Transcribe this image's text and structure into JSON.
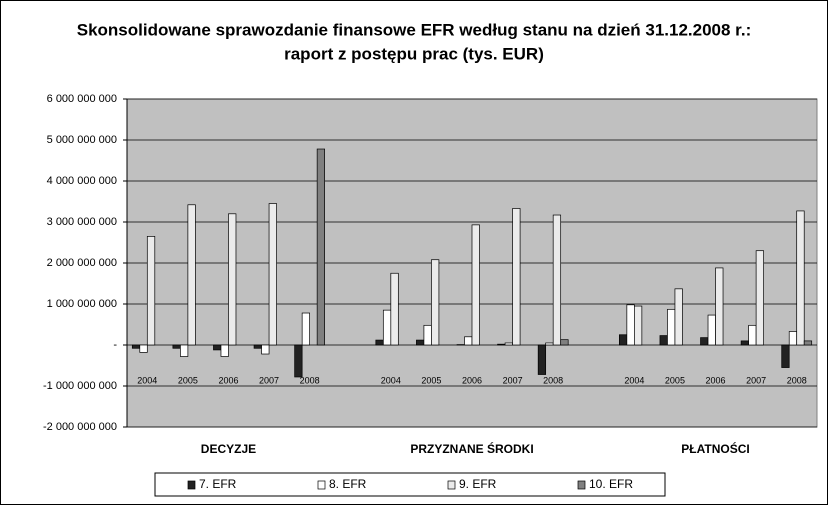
{
  "chart_data": {
    "type": "bar",
    "title": [
      "Skonsolidowane sprawozdanie finansowe EFR według stanu na dzień 31.12.2008 r.:",
      "raport z postępu prac (tys. EUR)"
    ],
    "categories": [
      "2004",
      "2005",
      "2006",
      "2007",
      "2008",
      null,
      "2004",
      "2005",
      "2006",
      "2007",
      "2008",
      null,
      "2004",
      "2005",
      "2006",
      "2007",
      "2008"
    ],
    "groups": [
      "DECYZJE",
      "PRZYZNANE ŚRODKI",
      "PŁATNOŚCI"
    ],
    "series": [
      {
        "name": "7. EFR",
        "color": "#222222",
        "values": [
          -80000000,
          -80000000,
          -120000000,
          -80000000,
          -780000000,
          null,
          120000000,
          120000000,
          10000000,
          20000000,
          -720000000,
          null,
          250000000,
          230000000,
          180000000,
          100000000,
          -550000000
        ]
      },
      {
        "name": "8. EFR",
        "color": "#ffffff",
        "values": [
          -180000000,
          -280000000,
          -280000000,
          -220000000,
          780000000,
          null,
          850000000,
          480000000,
          200000000,
          50000000,
          50000000,
          null,
          980000000,
          870000000,
          730000000,
          480000000,
          330000000
        ]
      },
      {
        "name": "9. EFR",
        "color": "#ebebeb",
        "values": [
          2650000000,
          3420000000,
          3200000000,
          3450000000,
          0,
          null,
          1750000000,
          2080000000,
          2930000000,
          3330000000,
          3170000000,
          null,
          950000000,
          1370000000,
          1880000000,
          2300000000,
          3270000000
        ]
      },
      {
        "name": "10. EFR",
        "color": "#808080",
        "values": [
          0,
          0,
          0,
          0,
          4780000000,
          null,
          0,
          0,
          0,
          0,
          130000000,
          null,
          0,
          0,
          0,
          0,
          100000000
        ]
      }
    ],
    "ylim": [
      -2000000000,
      6000000000
    ],
    "yticks": [
      {
        "value": -2000000000,
        "label": "-2 000 000 000"
      },
      {
        "value": -1000000000,
        "label": "-1 000 000 000"
      },
      {
        "value": 0,
        "label": "-"
      },
      {
        "value": 1000000000,
        "label": "1 000 000 000"
      },
      {
        "value": 2000000000,
        "label": "2 000 000 000"
      },
      {
        "value": 3000000000,
        "label": "3 000 000 000"
      },
      {
        "value": 4000000000,
        "label": "4 000 000 000"
      },
      {
        "value": 5000000000,
        "label": "5 000 000 000"
      },
      {
        "value": 6000000000,
        "label": "6 000 000 000"
      }
    ],
    "grid": true,
    "legend": "bottom"
  }
}
